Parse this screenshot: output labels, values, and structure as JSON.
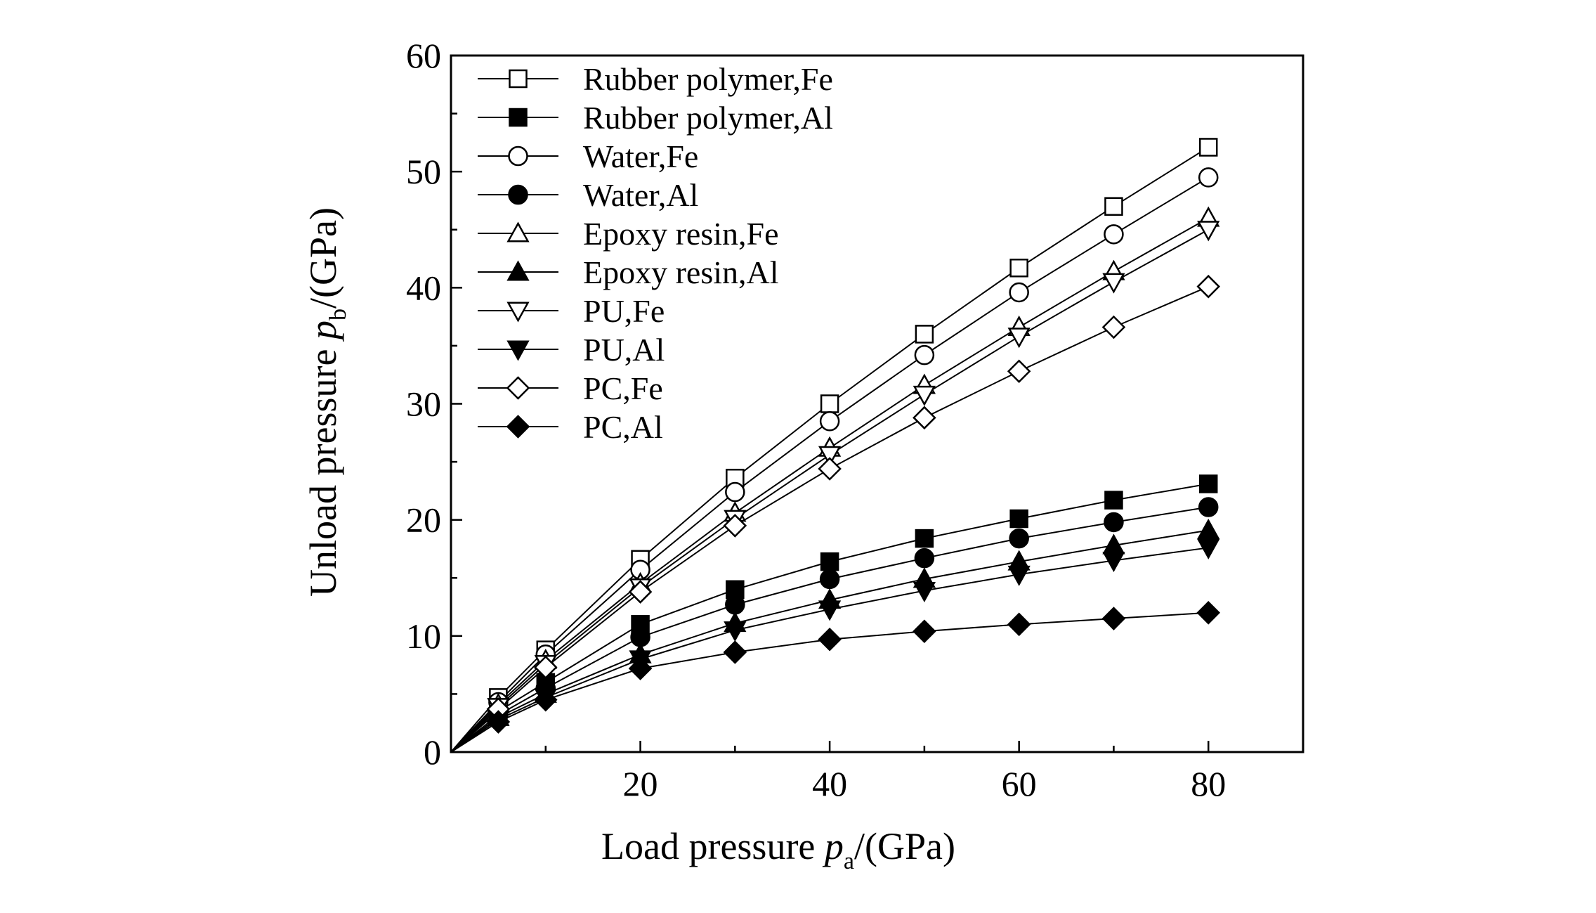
{
  "chart_data": {
    "type": "line",
    "xlabel_main": "Load pressure ",
    "xlabel_var": "p",
    "xlabel_sub": "a",
    "xlabel_unit": "/(GPa)",
    "ylabel_main": "Unload pressure ",
    "ylabel_var": "p",
    "ylabel_sub": "b",
    "ylabel_unit": "/(GPa)",
    "xlim": [
      0,
      90
    ],
    "ylim": [
      0,
      60
    ],
    "xticks": [
      20,
      40,
      60,
      80
    ],
    "xtick_labels": [
      "20",
      "40",
      "60",
      "80"
    ],
    "yticks": [
      0,
      10,
      20,
      30,
      40,
      50,
      60
    ],
    "ytick_labels": [
      "0",
      "10",
      "20",
      "30",
      "40",
      "50",
      "60"
    ],
    "grid": false,
    "legend_position": "top-left",
    "x": [
      0,
      5,
      10,
      20,
      30,
      40,
      50,
      60,
      70,
      80
    ],
    "series": [
      {
        "name": "Rubber polymer,Fe",
        "marker": "square",
        "fill": "open",
        "values": [
          0,
          4.7,
          8.8,
          16.6,
          23.6,
          30.0,
          36.0,
          41.7,
          47.0,
          52.1
        ]
      },
      {
        "name": "Rubber polymer,Al",
        "marker": "square",
        "fill": "filled",
        "values": [
          0,
          3.5,
          6.0,
          11.0,
          14.0,
          16.4,
          18.4,
          20.1,
          21.7,
          23.1
        ]
      },
      {
        "name": "Water,Fe",
        "marker": "circle",
        "fill": "open",
        "values": [
          0,
          4.3,
          8.4,
          15.7,
          22.4,
          28.5,
          34.2,
          39.6,
          44.6,
          49.5
        ]
      },
      {
        "name": "Water,Al",
        "marker": "circle",
        "fill": "filled",
        "values": [
          0,
          3.2,
          5.5,
          9.9,
          12.7,
          14.9,
          16.7,
          18.4,
          19.8,
          21.1
        ]
      },
      {
        "name": "Epoxy resin,Fe",
        "marker": "triangle-up",
        "fill": "open",
        "values": [
          0,
          4.1,
          7.9,
          14.5,
          20.6,
          26.2,
          31.6,
          36.6,
          41.4,
          46.0
        ]
      },
      {
        "name": "Epoxy resin,Al",
        "marker": "triangle-up",
        "fill": "filled",
        "values": [
          0,
          3.0,
          5.0,
          8.4,
          11.1,
          13.1,
          14.9,
          16.4,
          17.8,
          19.1
        ]
      },
      {
        "name": "PU,Fe",
        "marker": "triangle-down",
        "fill": "open",
        "values": [
          0,
          3.9,
          7.6,
          14.2,
          20.1,
          25.6,
          30.8,
          35.8,
          40.5,
          45.0
        ]
      },
      {
        "name": "PU,Al",
        "marker": "triangle-down",
        "fill": "filled",
        "values": [
          0,
          2.8,
          4.7,
          8.0,
          10.5,
          12.3,
          13.9,
          15.3,
          16.5,
          17.6
        ]
      },
      {
        "name": "PC,Fe",
        "marker": "diamond",
        "fill": "open",
        "values": [
          0,
          3.7,
          7.3,
          13.8,
          19.5,
          24.4,
          28.8,
          32.8,
          36.6,
          40.1
        ]
      },
      {
        "name": "PC,Al",
        "marker": "diamond",
        "fill": "filled",
        "values": [
          0,
          2.6,
          4.5,
          7.2,
          8.6,
          9.7,
          10.4,
          11.0,
          11.5,
          12.0
        ]
      }
    ]
  }
}
